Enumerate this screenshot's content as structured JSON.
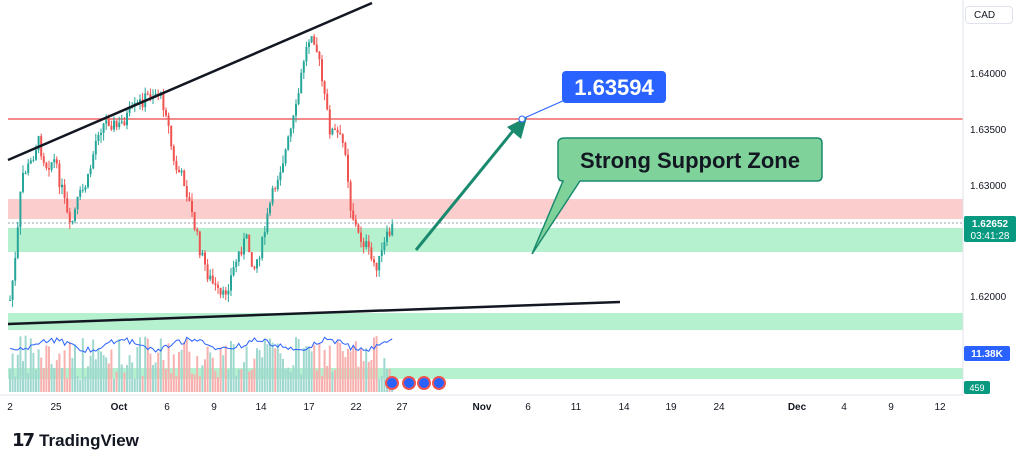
{
  "branding": {
    "logo_text": "TradingView",
    "logo_mark": "17"
  },
  "currency": "CAD",
  "colors": {
    "up": "#26a69a",
    "down": "#ef5350",
    "resistance_zone": "#fbcdcd",
    "support_zone": "#b6f1cf",
    "trendline": "#131722",
    "arrow": "#1a8a6f",
    "target_label_bg": "#2962ff",
    "callout_bg": "#7fd39a",
    "target_line": "#f28b8b",
    "volume_ma": "#2962ff",
    "price_tag": "#089981",
    "volume_tag": "#2962ff"
  },
  "annotations": {
    "target_label": "1.63594",
    "support_callout": "Strong Support Zone",
    "current_price": "1.62652",
    "countdown": "03:41:28",
    "volume_value": "11.38K",
    "lower_value": "459"
  },
  "chart_data": {
    "type": "candlestick",
    "symbol_currency": "CAD",
    "y_ticks": [
      "1.64000",
      "1.63500",
      "1.63000",
      "1.62000"
    ],
    "x_ticks": [
      "2",
      "25",
      "Oct",
      "6",
      "9",
      "14",
      "17",
      "22",
      "27",
      "Nov",
      "6",
      "11",
      "14",
      "19",
      "24",
      "Dec",
      "4",
      "9",
      "12"
    ],
    "bold_x_ticks": [
      "Oct",
      "Nov",
      "Dec"
    ],
    "target_level": 1.63594,
    "current_price": 1.62652,
    "resistance_zone": [
      1.6268,
      1.6288
    ],
    "support_zone": [
      1.6239,
      1.6262
    ],
    "lower_support_zone": [
      1.6168,
      1.6176
    ],
    "volume_last": "11.38K"
  }
}
